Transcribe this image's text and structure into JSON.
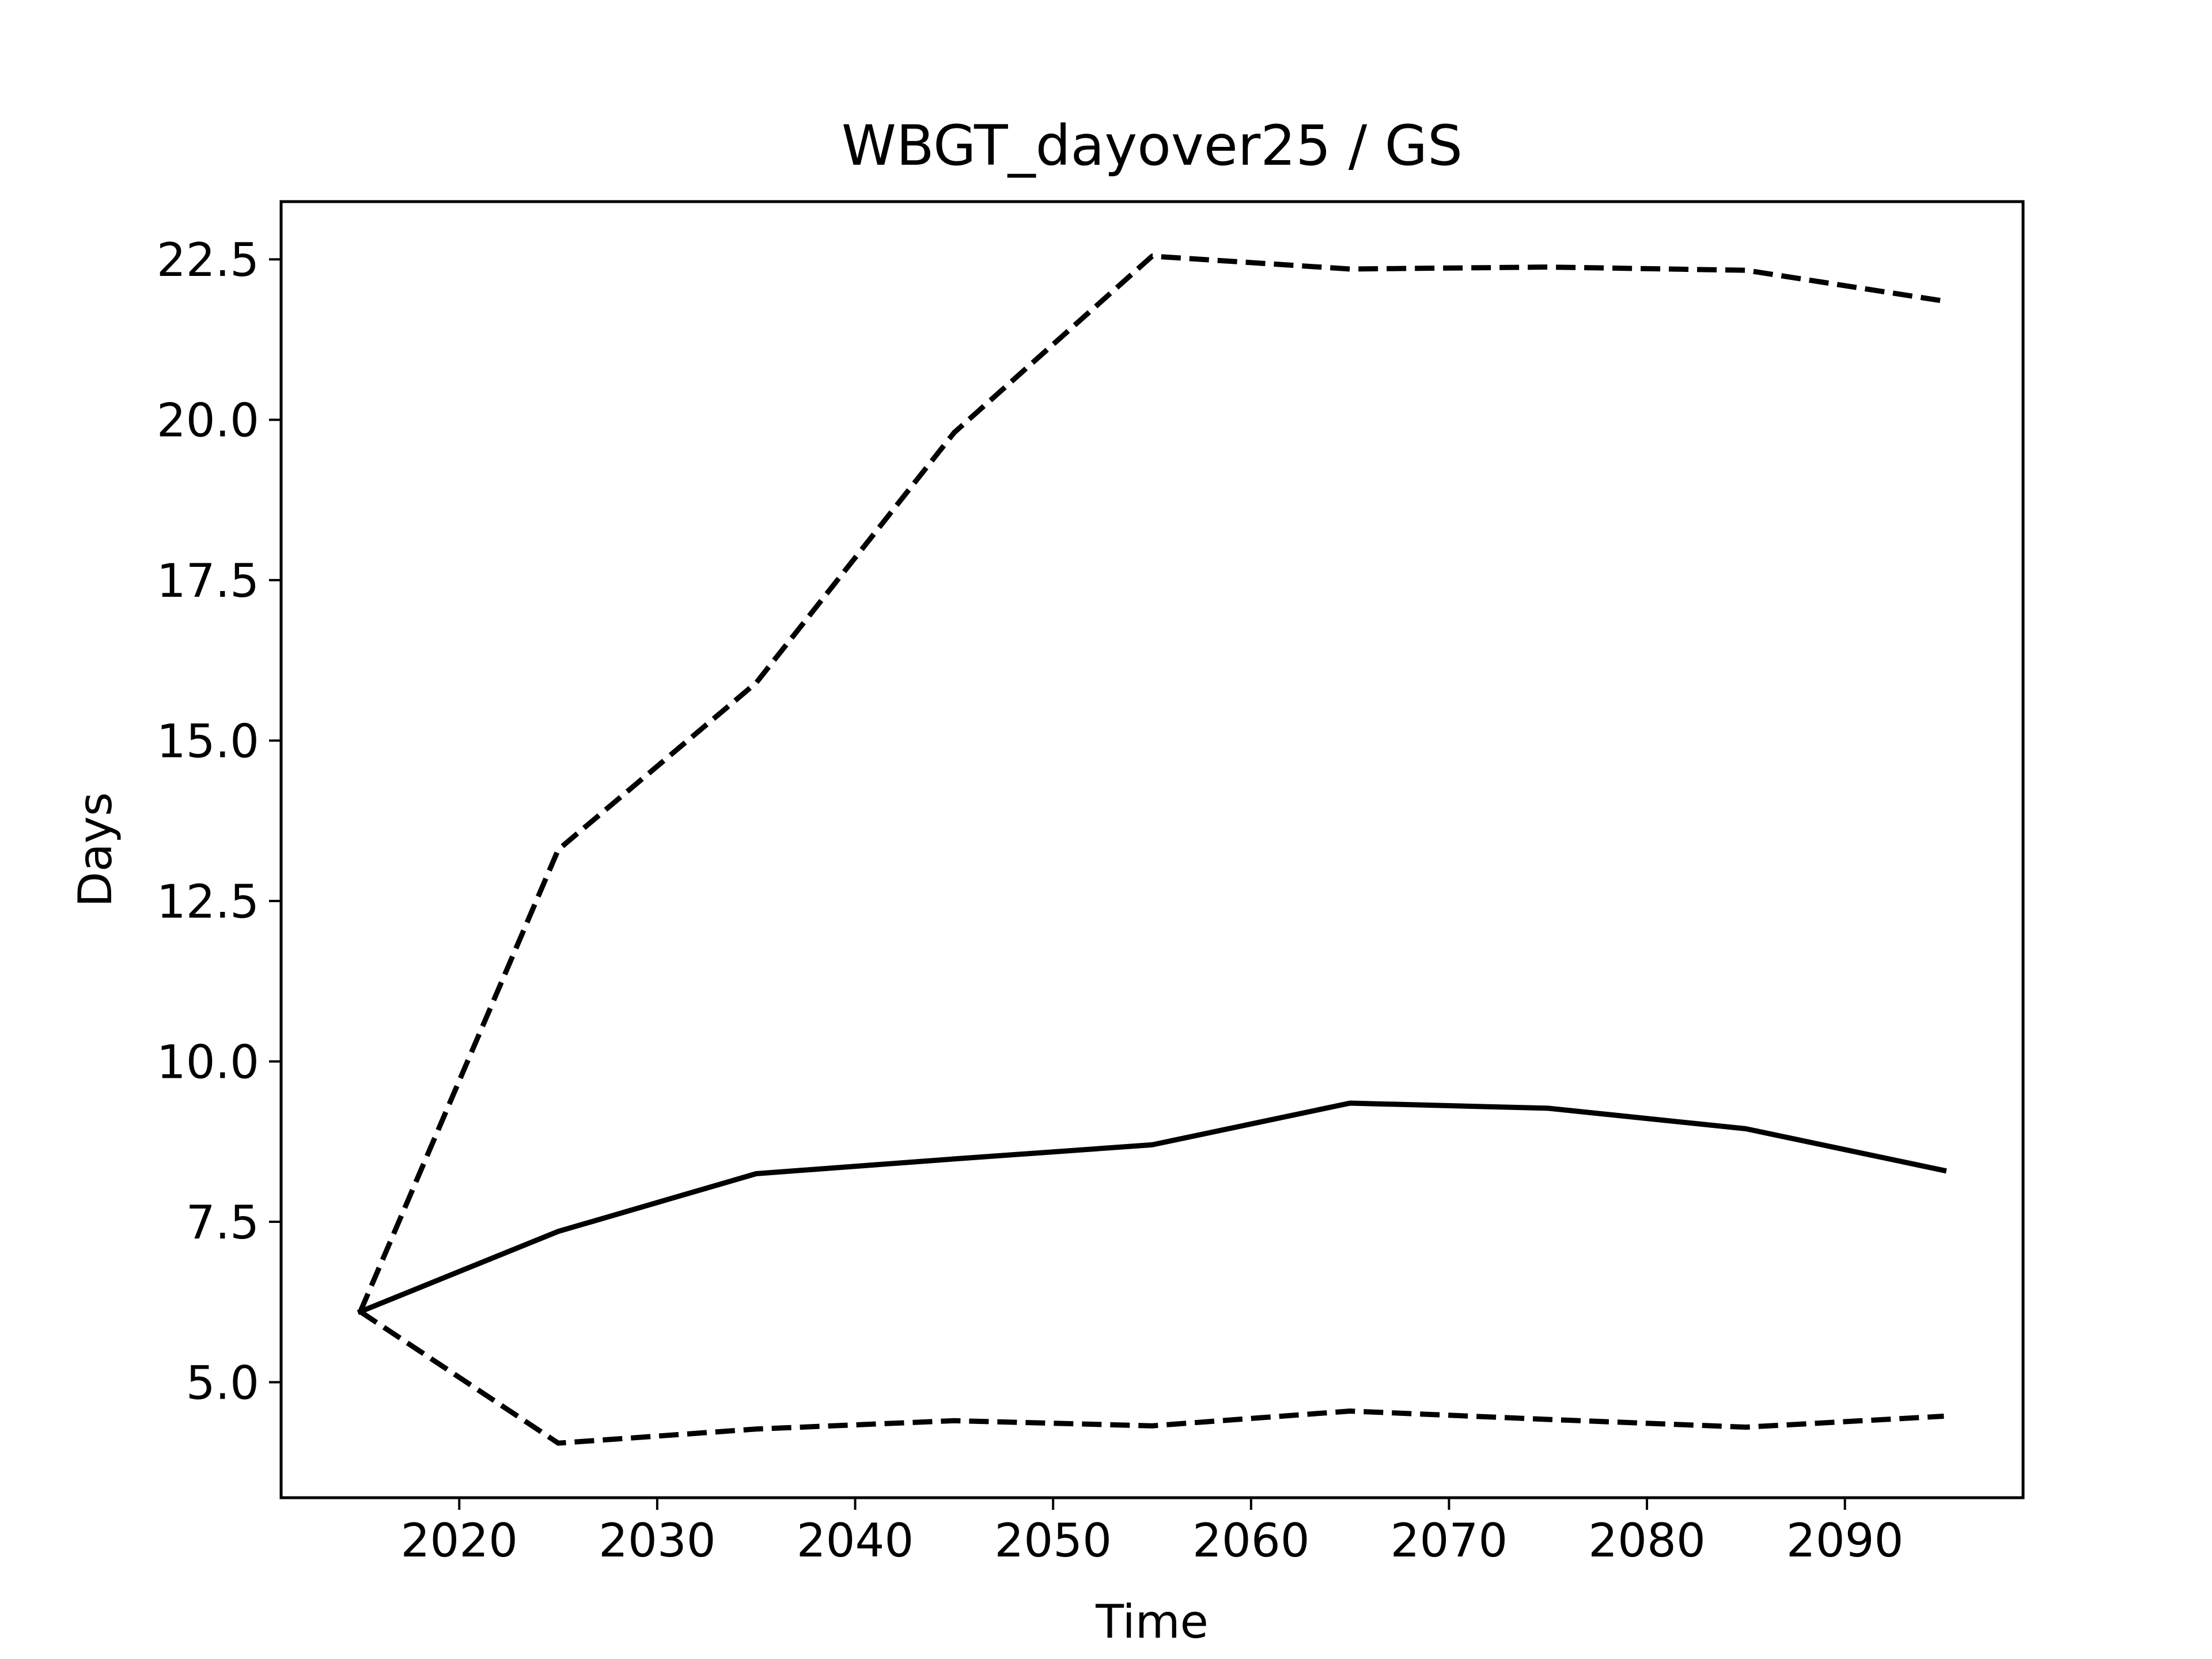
{
  "chart_data": {
    "type": "line",
    "title": "WBGT_dayover25 / GS",
    "xlabel": "Time",
    "ylabel": "Days",
    "x": [
      2015,
      2025,
      2035,
      2045,
      2055,
      2065,
      2075,
      2085,
      2095
    ],
    "xlim": [
      2011,
      2099
    ],
    "ylim": [
      3.2,
      23.4
    ],
    "xticks": [
      2020,
      2030,
      2040,
      2050,
      2060,
      2070,
      2080,
      2090
    ],
    "xtick_labels": [
      "2020",
      "2030",
      "2040",
      "2050",
      "2060",
      "2070",
      "2080",
      "2090"
    ],
    "yticks": [
      5.0,
      7.5,
      10.0,
      12.5,
      15.0,
      17.5,
      20.0,
      22.5
    ],
    "ytick_labels": [
      "5.0",
      "7.5",
      "10.0",
      "12.5",
      "15.0",
      "17.5",
      "20.0",
      "22.5"
    ],
    "grid": false,
    "legend": "none",
    "series": [
      {
        "style": "solid",
        "color": "#000000",
        "values": [
          6.1,
          7.35,
          8.25,
          8.48,
          8.7,
          9.35,
          9.27,
          8.95,
          8.3
        ]
      },
      {
        "style": "dashed",
        "color": "#000000",
        "values": [
          6.1,
          13.3,
          15.9,
          19.8,
          22.55,
          22.35,
          22.38,
          22.33,
          21.85
        ]
      },
      {
        "style": "dashed",
        "color": "#000000",
        "values": [
          6.1,
          4.05,
          4.27,
          4.4,
          4.32,
          4.55,
          4.42,
          4.3,
          4.47
        ]
      }
    ]
  }
}
